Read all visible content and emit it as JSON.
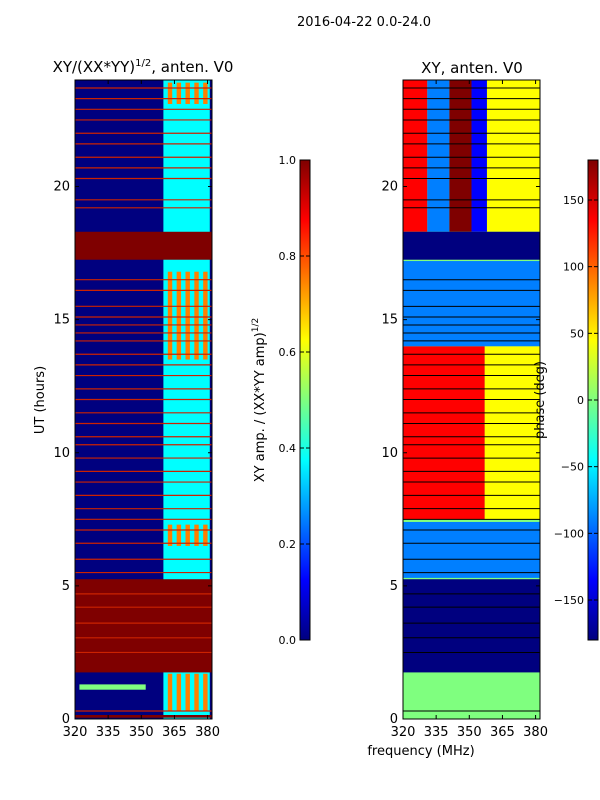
{
  "figure": {
    "suptitle": "2016-04-22 0.0-24.0",
    "shared_xlabel": "frequency (MHz)"
  },
  "colors": {
    "jet": [
      "#00007f",
      "#0000ff",
      "#007fff",
      "#00ffff",
      "#7fff7f",
      "#ffff00",
      "#ff7f00",
      "#ff0000",
      "#7f0000"
    ],
    "flag_line": "#cc2200",
    "gap_line": "#ffffff"
  },
  "chart_data": [
    {
      "type": "heatmap",
      "id": "amp",
      "title_main": "XY/(XX*YY)",
      "title_sup": "1/2",
      "title_tail": ", anten. V0",
      "xlabel": "",
      "ylabel": "UT (hours)",
      "xlim": [
        320,
        382
      ],
      "ylim": [
        0,
        24
      ],
      "xticks": [
        320,
        335,
        350,
        365,
        380
      ],
      "yticks": [
        0,
        5,
        10,
        15,
        20
      ],
      "colorbar": {
        "label_main": "XY amp. / (XX*YY amp)",
        "label_sup": "1/2",
        "range": [
          0.0,
          1.0
        ],
        "ticks": [
          "0.0",
          "0.2",
          "0.4",
          "0.6",
          "0.8",
          "1.0"
        ],
        "tick_values": [
          0.0,
          0.2,
          0.4,
          0.6,
          0.8,
          1.0
        ]
      },
      "flagged_hours": [
        [
          0.05,
          0.15
        ],
        [
          1.75,
          5.25
        ],
        [
          17.25,
          18.3
        ]
      ],
      "flag_value": 1.0,
      "flag_row_hours": [
        0.3,
        2.5,
        3.05,
        3.6,
        4.2,
        4.7,
        5.5,
        6.0,
        6.6,
        7.1,
        7.5,
        7.9,
        8.4,
        8.9,
        9.3,
        9.8,
        10.3,
        10.6,
        11.1,
        11.5,
        12.0,
        12.4,
        12.9,
        13.3,
        13.7,
        14.2,
        14.5,
        14.8,
        15.1,
        15.5,
        16.1,
        16.5,
        19.2,
        19.5,
        20.3,
        20.7,
        21.1,
        21.6,
        22.0,
        22.5,
        22.9,
        23.3,
        23.7
      ],
      "hot_band_mhz": [
        [
          362,
          364
        ],
        [
          366,
          368
        ],
        [
          370,
          372
        ],
        [
          374,
          376
        ],
        [
          378,
          380
        ]
      ],
      "hot_hours": [
        [
          0.3,
          1.7
        ],
        [
          6.5,
          7.3
        ],
        [
          13.5,
          16.8
        ],
        [
          23.1,
          23.9
        ]
      ],
      "base_value": 0.05,
      "band_value": 0.35,
      "hot_value": 0.75
    },
    {
      "type": "heatmap",
      "id": "phase",
      "title_main": "XY, anten. V0",
      "xlabel": "",
      "ylabel": "",
      "xlim": [
        320,
        382
      ],
      "ylim": [
        0,
        24
      ],
      "xticks": [
        320,
        335,
        350,
        365,
        380
      ],
      "yticks": [
        0,
        5,
        10,
        15,
        20
      ],
      "colorbar": {
        "label_main": "phase (deg)",
        "range": [
          -180,
          180
        ],
        "ticks": [
          "−150",
          "−100",
          "−50",
          "0",
          "50",
          "100",
          "150"
        ],
        "tick_values": [
          -150,
          -100,
          -50,
          0,
          50,
          100,
          150
        ]
      },
      "flagged_hours": [
        [
          1.75,
          5.25
        ],
        [
          17.25,
          18.3
        ]
      ],
      "flag_value": -180,
      "stripe_hours": [
        18.3,
        24.0
      ],
      "stripe_pattern_mhz": [
        [
          320,
          331,
          150
        ],
        [
          331,
          341,
          -100
        ],
        [
          341,
          351,
          160
        ],
        [
          351,
          358,
          -120
        ],
        [
          358,
          382,
          60
        ]
      ],
      "mid_hours": [
        7.5,
        14.0
      ],
      "mid_split_mhz": 357,
      "mid_left_value": 120,
      "mid_right_value": 30
    }
  ]
}
